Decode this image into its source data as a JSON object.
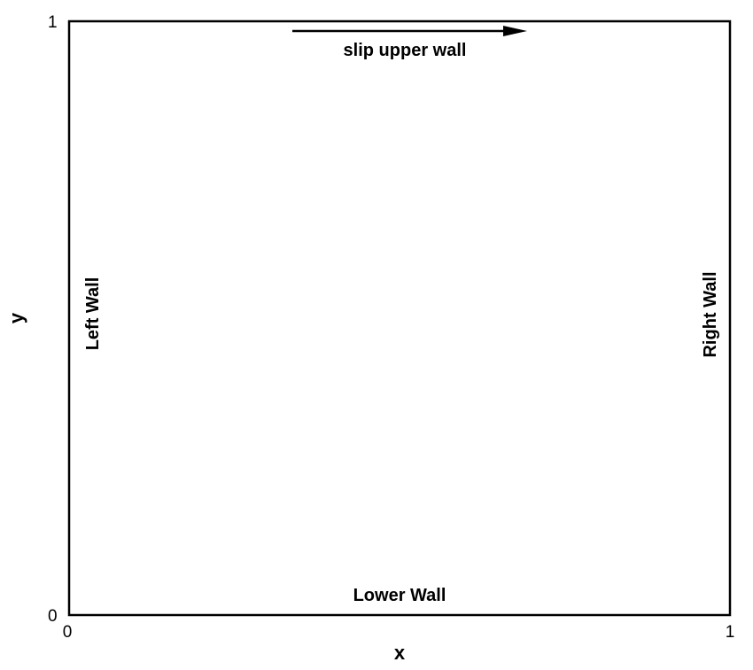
{
  "axes": {
    "x_title": "x",
    "y_title": "y",
    "x_ticks": [
      "0",
      "1"
    ],
    "y_ticks": [
      "0",
      "1"
    ]
  },
  "walls": {
    "upper": "slip upper wall",
    "lower": "Lower Wall",
    "left": "Left Wall",
    "right": "Right Wall"
  },
  "colors": {
    "line": "#000000",
    "background": "#ffffff"
  },
  "icons": {
    "upper_wall_motion": "arrow-right-icon"
  }
}
